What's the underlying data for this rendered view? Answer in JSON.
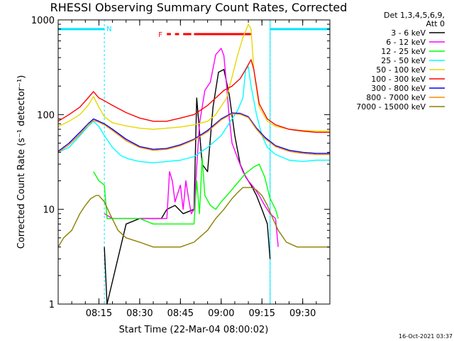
{
  "colors": {
    "background": "#ffffff",
    "axes": "#000000",
    "night_bar": "#00e5ff",
    "flare_bar": "#ff0000"
  },
  "chart_data": {
    "type": "line",
    "title": "RHESSI Observing Summary Count Rates, Corrected",
    "xlabel": "Start Time (22-Mar-04 08:00:02)",
    "ylabel": "Corrected Count Rate (s⁻¹ detector⁻¹)",
    "y_scale": "log",
    "ylim": [
      1,
      1000
    ],
    "xlim_minutes": [
      0,
      100
    ],
    "x_ticks": [
      {
        "minute": 15,
        "label": "08:15"
      },
      {
        "minute": 30,
        "label": "08:30"
      },
      {
        "minute": 45,
        "label": "08:45"
      },
      {
        "minute": 60,
        "label": "09:00"
      },
      {
        "minute": 75,
        "label": "09:15"
      },
      {
        "minute": 90,
        "label": "09:30"
      }
    ],
    "y_ticks": [
      {
        "value": 1,
        "label": "1"
      },
      {
        "value": 10,
        "label": "10"
      },
      {
        "value": 100,
        "label": "100"
      },
      {
        "value": 1000,
        "label": "1000"
      }
    ],
    "legend_header": [
      "Det 1,3,4,5,6,9,",
      "Att 0"
    ],
    "legend_position": "right",
    "timestamp": "16-Oct-2021 03:37",
    "night_marker_label": "N",
    "flare_marker_label": "F",
    "night_intervals": [
      [
        0,
        17
      ],
      [
        78,
        100
      ]
    ],
    "flare_segments": [
      [
        40,
        41.5
      ],
      [
        43,
        44.5
      ],
      [
        46,
        49
      ],
      [
        50,
        71
      ]
    ],
    "series": [
      {
        "name": "3 - 6 keV",
        "color": "#000000",
        "points": [
          [
            17,
            4
          ],
          [
            18,
            1
          ],
          [
            25,
            7
          ],
          [
            30,
            8
          ],
          [
            38,
            8
          ],
          [
            40,
            10
          ],
          [
            43,
            11
          ],
          [
            46,
            9
          ],
          [
            50,
            10
          ],
          [
            51,
            150
          ],
          [
            53,
            30
          ],
          [
            55,
            25
          ],
          [
            57,
            120
          ],
          [
            59,
            280
          ],
          [
            61,
            300
          ],
          [
            63,
            160
          ],
          [
            65,
            60
          ],
          [
            67,
            30
          ],
          [
            69,
            22
          ],
          [
            71,
            18
          ],
          [
            73,
            14
          ],
          [
            75,
            10
          ],
          [
            77,
            7
          ],
          [
            78,
            3
          ]
        ]
      },
      {
        "name": "6 - 12 keV",
        "color": "#ff00ff",
        "points": [
          [
            17,
            9
          ],
          [
            20,
            8
          ],
          [
            25,
            8
          ],
          [
            30,
            8
          ],
          [
            35,
            8
          ],
          [
            40,
            8
          ],
          [
            41,
            25
          ],
          [
            42,
            20
          ],
          [
            43,
            12
          ],
          [
            45,
            18
          ],
          [
            46,
            10
          ],
          [
            47,
            20
          ],
          [
            48,
            13
          ],
          [
            49,
            9
          ],
          [
            50,
            10
          ],
          [
            52,
            80
          ],
          [
            54,
            180
          ],
          [
            56,
            220
          ],
          [
            58,
            430
          ],
          [
            60,
            500
          ],
          [
            61,
            420
          ],
          [
            62,
            200
          ],
          [
            63,
            90
          ],
          [
            64,
            50
          ],
          [
            66,
            35
          ],
          [
            68,
            25
          ],
          [
            70,
            20
          ],
          [
            72,
            17
          ],
          [
            74,
            14
          ],
          [
            76,
            11
          ],
          [
            78,
            9
          ],
          [
            80,
            8
          ],
          [
            81,
            4
          ]
        ]
      },
      {
        "name": "12 - 25 keV",
        "color": "#00ff00",
        "points": [
          [
            13,
            25
          ],
          [
            15,
            20
          ],
          [
            17,
            18
          ],
          [
            18,
            8
          ],
          [
            20,
            8
          ],
          [
            25,
            8
          ],
          [
            30,
            8
          ],
          [
            35,
            7
          ],
          [
            40,
            7
          ],
          [
            45,
            7
          ],
          [
            50,
            7
          ],
          [
            51,
            20
          ],
          [
            52,
            9
          ],
          [
            53,
            35
          ],
          [
            54,
            14
          ],
          [
            56,
            11
          ],
          [
            58,
            10
          ],
          [
            60,
            12
          ],
          [
            63,
            15
          ],
          [
            66,
            19
          ],
          [
            69,
            24
          ],
          [
            72,
            28
          ],
          [
            74,
            30
          ],
          [
            76,
            22
          ],
          [
            78,
            13
          ],
          [
            80,
            10
          ],
          [
            81,
            8
          ]
        ]
      },
      {
        "name": "25 - 50 keV",
        "color": "#00ffff",
        "points": [
          [
            0,
            40
          ],
          [
            4,
            45
          ],
          [
            8,
            60
          ],
          [
            11,
            75
          ],
          [
            13,
            85
          ],
          [
            15,
            75
          ],
          [
            17,
            60
          ],
          [
            20,
            45
          ],
          [
            23,
            37
          ],
          [
            26,
            34
          ],
          [
            30,
            32
          ],
          [
            35,
            31
          ],
          [
            40,
            32
          ],
          [
            45,
            33
          ],
          [
            50,
            36
          ],
          [
            55,
            45
          ],
          [
            60,
            60
          ],
          [
            64,
            90
          ],
          [
            66,
            110
          ],
          [
            68,
            150
          ],
          [
            69,
            300
          ],
          [
            70,
            320
          ],
          [
            71,
            200
          ],
          [
            73,
            100
          ],
          [
            75,
            60
          ],
          [
            77,
            45
          ],
          [
            80,
            38
          ],
          [
            85,
            33
          ],
          [
            90,
            32
          ],
          [
            95,
            33
          ],
          [
            100,
            33
          ]
        ]
      },
      {
        "name": "50 - 100 keV",
        "color": "#e6d800",
        "points": [
          [
            0,
            75
          ],
          [
            4,
            85
          ],
          [
            8,
            100
          ],
          [
            11,
            125
          ],
          [
            13,
            155
          ],
          [
            15,
            120
          ],
          [
            17,
            95
          ],
          [
            20,
            82
          ],
          [
            25,
            76
          ],
          [
            30,
            72
          ],
          [
            35,
            70
          ],
          [
            40,
            72
          ],
          [
            45,
            74
          ],
          [
            50,
            78
          ],
          [
            55,
            85
          ],
          [
            58,
            100
          ],
          [
            62,
            150
          ],
          [
            64,
            250
          ],
          [
            66,
            420
          ],
          [
            68,
            650
          ],
          [
            70,
            900
          ],
          [
            71,
            800
          ],
          [
            72,
            300
          ],
          [
            74,
            120
          ],
          [
            77,
            85
          ],
          [
            80,
            75
          ],
          [
            85,
            70
          ],
          [
            90,
            68
          ],
          [
            95,
            67
          ],
          [
            100,
            67
          ]
        ]
      },
      {
        "name": "100 - 300 keV",
        "color": "#ff0000",
        "points": [
          [
            0,
            85
          ],
          [
            4,
            100
          ],
          [
            8,
            120
          ],
          [
            11,
            150
          ],
          [
            13,
            175
          ],
          [
            15,
            150
          ],
          [
            17,
            140
          ],
          [
            20,
            125
          ],
          [
            25,
            105
          ],
          [
            30,
            92
          ],
          [
            35,
            85
          ],
          [
            40,
            85
          ],
          [
            45,
            92
          ],
          [
            50,
            100
          ],
          [
            55,
            125
          ],
          [
            58,
            150
          ],
          [
            61,
            180
          ],
          [
            64,
            200
          ],
          [
            67,
            240
          ],
          [
            69,
            300
          ],
          [
            71,
            380
          ],
          [
            72,
            300
          ],
          [
            74,
            130
          ],
          [
            77,
            90
          ],
          [
            80,
            78
          ],
          [
            85,
            70
          ],
          [
            90,
            67
          ],
          [
            95,
            65
          ],
          [
            100,
            65
          ]
        ]
      },
      {
        "name": "300 - 800 keV",
        "color": "#0000ff",
        "points": [
          [
            0,
            41
          ],
          [
            4,
            50
          ],
          [
            8,
            65
          ],
          [
            11,
            80
          ],
          [
            13,
            90
          ],
          [
            15,
            85
          ],
          [
            17,
            80
          ],
          [
            20,
            70
          ],
          [
            25,
            55
          ],
          [
            30,
            46
          ],
          [
            35,
            43
          ],
          [
            40,
            44
          ],
          [
            45,
            48
          ],
          [
            50,
            55
          ],
          [
            55,
            68
          ],
          [
            60,
            90
          ],
          [
            64,
            104
          ],
          [
            67,
            103
          ],
          [
            70,
            95
          ],
          [
            73,
            72
          ],
          [
            76,
            58
          ],
          [
            80,
            47
          ],
          [
            85,
            42
          ],
          [
            90,
            40
          ],
          [
            95,
            39
          ],
          [
            100,
            39
          ]
        ]
      },
      {
        "name": "800 - 7000 keV",
        "color": "#ff8c00",
        "points": [
          [
            0,
            40
          ],
          [
            4,
            48
          ],
          [
            8,
            62
          ],
          [
            11,
            78
          ],
          [
            13,
            87
          ],
          [
            15,
            83
          ],
          [
            17,
            78
          ],
          [
            20,
            68
          ],
          [
            25,
            53
          ],
          [
            30,
            45
          ],
          [
            35,
            42
          ],
          [
            40,
            43
          ],
          [
            45,
            47
          ],
          [
            50,
            54
          ],
          [
            55,
            66
          ],
          [
            60,
            88
          ],
          [
            64,
            102
          ],
          [
            67,
            101
          ],
          [
            70,
            93
          ],
          [
            73,
            70
          ],
          [
            76,
            56
          ],
          [
            80,
            46
          ],
          [
            85,
            41
          ],
          [
            90,
            39
          ],
          [
            95,
            38
          ],
          [
            100,
            38
          ]
        ]
      },
      {
        "name": "7000 - 15000 keV",
        "color": "#8b8000",
        "points": [
          [
            0,
            4
          ],
          [
            2,
            5
          ],
          [
            5,
            6
          ],
          [
            8,
            9
          ],
          [
            10,
            11
          ],
          [
            12,
            13
          ],
          [
            14,
            14
          ],
          [
            15,
            14
          ],
          [
            17,
            12
          ],
          [
            19,
            9
          ],
          [
            22,
            6
          ],
          [
            25,
            5
          ],
          [
            30,
            4.5
          ],
          [
            35,
            4
          ],
          [
            40,
            4
          ],
          [
            45,
            4
          ],
          [
            50,
            4.5
          ],
          [
            55,
            6
          ],
          [
            58,
            8
          ],
          [
            61,
            10
          ],
          [
            64,
            13
          ],
          [
            66,
            15
          ],
          [
            68,
            17
          ],
          [
            71,
            17
          ],
          [
            73,
            16
          ],
          [
            75,
            14
          ],
          [
            77,
            11
          ],
          [
            79,
            8
          ],
          [
            81,
            6
          ],
          [
            84,
            4.5
          ],
          [
            88,
            4
          ],
          [
            95,
            4
          ],
          [
            100,
            4
          ]
        ]
      }
    ]
  }
}
